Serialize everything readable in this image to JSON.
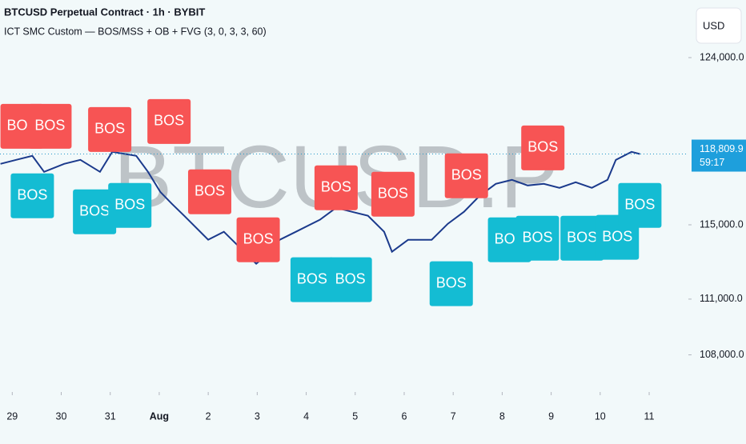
{
  "chart_data": {
    "type": "line",
    "title": "BTCUSD Perpetual Contract · 1h · BYBIT",
    "subtitle": "ICT SMC Custom — BOS/MSS + OB + FVG (3, 0, 3, 3, 60)",
    "currency": "USD",
    "watermark": "BTCUSD.P",
    "color": "#1b3a8c",
    "x": [
      -0.24,
      0.08,
      0.41,
      0.65,
      1.06,
      1.39,
      1.79,
      2.04,
      2.53,
      2.77,
      3.02,
      3.26,
      3.51,
      4.0,
      4.32,
      4.65,
      4.98,
      5.22,
      5.46,
      5.79,
      6.28,
      6.61,
      6.93,
      7.26,
      7.59,
      7.75,
      8.08,
      8.56,
      8.89,
      9.22,
      9.54,
      9.87,
      10.2,
      10.52,
      10.85,
      11.17,
      11.5,
      11.83,
      12.15,
      12.32,
      12.64,
      12.81
    ],
    "values": [
      118280,
      118495,
      118710,
      117850,
      118280,
      118495,
      117850,
      118925,
      118710,
      117850,
      116775,
      116130,
      115485,
      114195,
      114625,
      113765,
      112905,
      113420,
      114195,
      114625,
      115270,
      115915,
      115700,
      115485,
      114625,
      113550,
      114195,
      114195,
      115055,
      115700,
      116560,
      117205,
      117420,
      117120,
      117205,
      116990,
      117290,
      116990,
      117420,
      118495,
      118925,
      118809.9
    ],
    "last_price": {
      "value": 118809.9,
      "label": "118,809.9"
    },
    "countdown": "59:17",
    "xlim": [
      -0.25,
      13.8
    ],
    "xticks": [
      {
        "value": 0,
        "label": "29"
      },
      {
        "value": 1,
        "label": "30"
      },
      {
        "value": 2,
        "label": "31"
      },
      {
        "value": 3,
        "label": "Aug"
      },
      {
        "value": 4,
        "label": "2"
      },
      {
        "value": 5,
        "label": "3"
      },
      {
        "value": 6,
        "label": "4"
      },
      {
        "value": 7,
        "label": "5"
      },
      {
        "value": 8,
        "label": "6"
      },
      {
        "value": 9,
        "label": "7"
      },
      {
        "value": 10,
        "label": "8"
      },
      {
        "value": 11,
        "label": "9"
      },
      {
        "value": 12,
        "label": "10"
      },
      {
        "value": 13,
        "label": "11"
      }
    ],
    "ylim": [
      106000,
      127100
    ],
    "yticks": [
      {
        "value": 124000,
        "label": "124,000.0"
      },
      {
        "value": 115000,
        "label": "115,000.0"
      },
      {
        "value": 111000,
        "label": "111,000.0"
      },
      {
        "value": 108000,
        "label": "108,000.0"
      }
    ],
    "labels": [
      {
        "text": "BOS",
        "x": 0.2,
        "y": 120300,
        "color": "#f75454"
      },
      {
        "text": "BOS",
        "x": 0.77,
        "y": 120300,
        "color": "#f75454"
      },
      {
        "text": "BOS",
        "x": 1.99,
        "y": 120130,
        "color": "#f75454"
      },
      {
        "text": "BOS",
        "x": 3.2,
        "y": 120560,
        "color": "#f75454"
      },
      {
        "text": "BOS",
        "x": 4.03,
        "y": 116775,
        "color": "#f75454"
      },
      {
        "text": "BOS",
        "x": 5.02,
        "y": 114195,
        "color": "#f75454"
      },
      {
        "text": "BOS",
        "x": 6.61,
        "y": 116990,
        "color": "#f75454"
      },
      {
        "text": "BOS",
        "x": 7.77,
        "y": 116645,
        "color": "#f75454"
      },
      {
        "text": "BOS",
        "x": 9.27,
        "y": 117635,
        "color": "#f75454"
      },
      {
        "text": "BOS",
        "x": 10.83,
        "y": 119140,
        "color": "#f75454"
      },
      {
        "text": "BOS",
        "x": 0.41,
        "y": 116560,
        "color": "#14bcd3"
      },
      {
        "text": "BOS",
        "x": 1.68,
        "y": 115700,
        "color": "#14bcd3"
      },
      {
        "text": "BOS",
        "x": 2.4,
        "y": 116045,
        "color": "#14bcd3"
      },
      {
        "text": "BOS",
        "x": 6.12,
        "y": 112045,
        "color": "#14bcd3"
      },
      {
        "text": "BOS",
        "x": 6.9,
        "y": 112045,
        "color": "#14bcd3"
      },
      {
        "text": "BOS",
        "x": 8.96,
        "y": 111830,
        "color": "#14bcd3"
      },
      {
        "text": "BOS",
        "x": 10.15,
        "y": 114195,
        "color": "#14bcd3"
      },
      {
        "text": "BOS",
        "x": 10.72,
        "y": 114280,
        "color": "#14bcd3"
      },
      {
        "text": "BOS",
        "x": 11.63,
        "y": 114280,
        "color": "#14bcd3"
      },
      {
        "text": "BOS",
        "x": 12.35,
        "y": 114325,
        "color": "#14bcd3"
      },
      {
        "text": "BOS",
        "x": 12.81,
        "y": 116045,
        "color": "#14bcd3"
      }
    ]
  }
}
